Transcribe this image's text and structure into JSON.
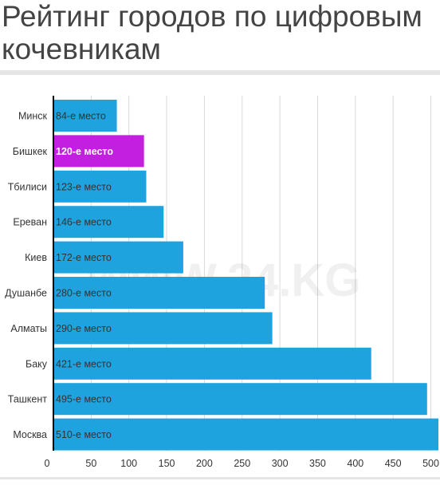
{
  "title": "Рейтинг городов по цифровым кочевникам",
  "watermark": "WWW.24.KG",
  "colors": {
    "bar": "#1fa3df",
    "highlight": "#c21fe0",
    "grid": "#d9d9d9",
    "text": "#333333"
  },
  "chart_data": {
    "type": "bar",
    "orientation": "horizontal",
    "title": "Рейтинг городов по цифровым кочевникам",
    "categories": [
      "Минск",
      "Бишкек",
      "Тбилиси",
      "Ереван",
      "Киев",
      "Душанбе",
      "Алматы",
      "Баку",
      "Ташкент",
      "Москва"
    ],
    "values": [
      84,
      120,
      123,
      146,
      172,
      280,
      290,
      421,
      495,
      510
    ],
    "data_labels": [
      "84-е место",
      "120-е место",
      "123-е место",
      "146-е место",
      "172-е место",
      "280-е место",
      "290-е место",
      "421-е место",
      "495-е место",
      "510-е место"
    ],
    "highlight_index": 1,
    "xlim": [
      0,
      510
    ],
    "x_ticks": [
      0,
      50,
      100,
      150,
      200,
      250,
      300,
      350,
      400,
      450,
      500
    ],
    "grid": true,
    "xlabel": "",
    "ylabel": ""
  }
}
